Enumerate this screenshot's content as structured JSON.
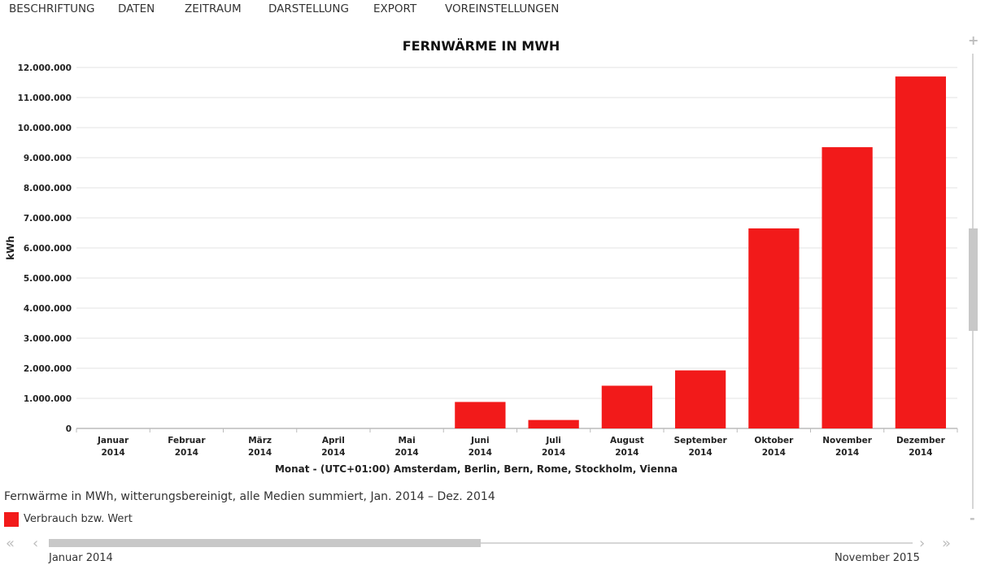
{
  "menu": {
    "items": [
      "BESCHRIFTUNG",
      "DATEN",
      "ZEITRAUM",
      "DARSTELLUNG",
      "EXPORT",
      "VOREINSTELLUNGEN"
    ]
  },
  "chart_data": {
    "type": "bar",
    "title": "FERNWÄRME IN MWH",
    "ylabel": "kWh",
    "xlabel": "Monat - (UTC+01:00) Amsterdam, Berlin, Bern, Rome, Stockholm, Vienna",
    "categories": [
      [
        "Januar",
        "2014"
      ],
      [
        "Februar",
        "2014"
      ],
      [
        "März",
        "2014"
      ],
      [
        "April",
        "2014"
      ],
      [
        "Mai",
        "2014"
      ],
      [
        "Juni",
        "2014"
      ],
      [
        "Juli",
        "2014"
      ],
      [
        "August",
        "2014"
      ],
      [
        "September",
        "2014"
      ],
      [
        "Oktober",
        "2014"
      ],
      [
        "November",
        "2014"
      ],
      [
        "Dezember",
        "2014"
      ]
    ],
    "series": [
      {
        "name": "Verbrauch bzw. Wert",
        "color": "#f21a1a",
        "values": [
          0,
          0,
          0,
          0,
          0,
          880000,
          280000,
          1420000,
          1930000,
          6650000,
          9350000,
          11700000
        ]
      }
    ],
    "ylim": [
      0,
      12000000
    ],
    "yticks": [
      {
        "value": 0,
        "label": "0"
      },
      {
        "value": 1000000,
        "label": "1.000.000"
      },
      {
        "value": 2000000,
        "label": "2.000.000"
      },
      {
        "value": 3000000,
        "label": "3.000.000"
      },
      {
        "value": 4000000,
        "label": "4.000.000"
      },
      {
        "value": 5000000,
        "label": "5.000.000"
      },
      {
        "value": 6000000,
        "label": "6.000.000"
      },
      {
        "value": 7000000,
        "label": "7.000.000"
      },
      {
        "value": 8000000,
        "label": "8.000.000"
      },
      {
        "value": 9000000,
        "label": "9.000.000"
      },
      {
        "value": 10000000,
        "label": "10.000.000"
      },
      {
        "value": 11000000,
        "label": "11.000.000"
      },
      {
        "value": 12000000,
        "label": "12.000.000"
      }
    ],
    "grid": true,
    "legend": "bottom-left"
  },
  "subtitle": "Fernwärme in MWh, witterungsbereinigt, alle Medien summiert, Jan. 2014 – Dez. 2014",
  "legend": {
    "label": "Verbrauch bzw. Wert",
    "color": "#f21a1a"
  },
  "navigator": {
    "start_label": "Januar 2014",
    "end_label": "November 2015",
    "first_icon": "double-chevron-left-icon",
    "prev_icon": "chevron-left-icon",
    "next_icon": "chevron-right-icon",
    "last_icon": "double-chevron-right-icon",
    "position": 0.5
  },
  "zoom": {
    "plus_icon": "plus-icon",
    "minus_icon": "minus-icon"
  }
}
